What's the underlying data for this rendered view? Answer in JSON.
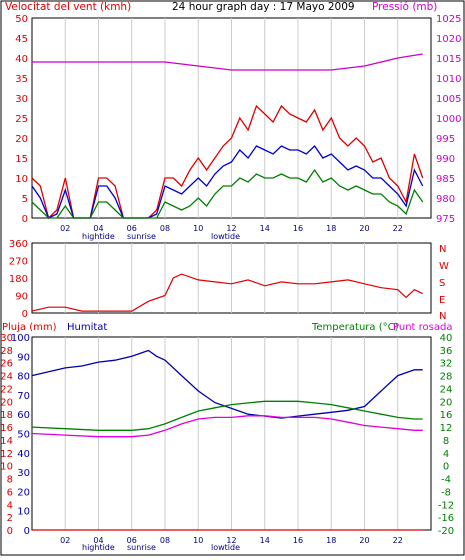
{
  "header": {
    "left_title": "Velocitat del vent (kmh)",
    "center_title": "24 hour graph day : 17 Mayo 2009",
    "right_title": "Pressió (mb)"
  },
  "markers": {
    "hightide": "hightide",
    "sunrise": "sunrise",
    "lowtide": "lowtide"
  },
  "wind_dir_labels": [
    "N",
    "W",
    "S",
    "E",
    "N"
  ],
  "bottom_header": {
    "rain": "Pluja (mm)",
    "humidity": "Humitat",
    "temperature": "Temperatura (°C)",
    "dewpoint": "Punt rosada"
  },
  "colors": {
    "wind_max": "#dd0000",
    "wind_avg": "#0000cc",
    "wind_min": "#008000",
    "pressure": "#cc00cc",
    "direction": "#dd0000",
    "humidity": "#0000aa",
    "temperature": "#008000",
    "dewpoint": "#dd00dd",
    "rain": "#dd0000",
    "grid": "#cccccc"
  },
  "chart_data": [
    {
      "type": "line",
      "title": "24 hour graph day : 17 Mayo 2009",
      "xlabel": "",
      "xticks": [
        "02",
        "04",
        "06",
        "08",
        "10",
        "12",
        "14",
        "16",
        "18",
        "20",
        "22"
      ],
      "xlim": [
        0,
        24
      ],
      "ylabel_left": "Velocitat del vent (kmh)",
      "ylim_left": [
        0,
        50
      ],
      "yticks_left": [
        0,
        5,
        10,
        15,
        20,
        25,
        30,
        35,
        40,
        45,
        50
      ],
      "ylabel_right": "Pressió (mb)",
      "ylim_right": [
        975,
        1025
      ],
      "yticks_right": [
        975,
        980,
        985,
        990,
        995,
        1000,
        1005,
        1010,
        1015,
        1020,
        1025
      ],
      "series": [
        {
          "name": "Velocitat del vent (kmh)",
          "axis": "left",
          "x": [
            0,
            0.5,
            1,
            1.5,
            2,
            2.5,
            3,
            3.5,
            4,
            4.5,
            5,
            5.5,
            6,
            6.5,
            7,
            7.5,
            8,
            8.5,
            9,
            9.5,
            10,
            10.5,
            11,
            11.5,
            12,
            12.5,
            13,
            13.5,
            14,
            14.5,
            15,
            15.5,
            16,
            16.5,
            17,
            17.5,
            18,
            18.5,
            19,
            19.5,
            20,
            20.5,
            21,
            21.5,
            22,
            22.5,
            23,
            23.5
          ],
          "values": [
            10,
            8,
            0,
            2,
            10,
            0,
            0,
            0,
            10,
            10,
            8,
            0,
            0,
            0,
            0,
            2,
            10,
            10,
            8,
            12,
            15,
            12,
            15,
            18,
            20,
            25,
            22,
            28,
            26,
            24,
            28,
            26,
            25,
            24,
            27,
            22,
            25,
            20,
            18,
            20,
            18,
            14,
            15,
            10,
            8,
            4,
            16,
            10
          ]
        },
        {
          "name": "",
          "axis": "left",
          "x": [
            0,
            0.5,
            1,
            1.5,
            2,
            2.5,
            3,
            3.5,
            4,
            4.5,
            5,
            5.5,
            6,
            6.5,
            7,
            7.5,
            8,
            8.5,
            9,
            9.5,
            10,
            10.5,
            11,
            11.5,
            12,
            12.5,
            13,
            13.5,
            14,
            14.5,
            15,
            15.5,
            16,
            16.5,
            17,
            17.5,
            18,
            18.5,
            19,
            19.5,
            20,
            20.5,
            21,
            21.5,
            22,
            22.5,
            23,
            23.5
          ],
          "values": [
            8,
            5,
            0,
            1,
            7,
            0,
            0,
            0,
            8,
            8,
            5,
            0,
            0,
            0,
            0,
            1,
            8,
            7,
            6,
            8,
            10,
            8,
            11,
            13,
            14,
            17,
            15,
            18,
            17,
            16,
            18,
            17,
            17,
            16,
            18,
            15,
            16,
            14,
            12,
            13,
            12,
            10,
            10,
            8,
            6,
            3,
            12,
            8
          ]
        },
        {
          "name": "",
          "axis": "left",
          "x": [
            0,
            0.5,
            1,
            1.5,
            2,
            2.5,
            3,
            3.5,
            4,
            4.5,
            5,
            5.5,
            6,
            6.5,
            7,
            7.5,
            8,
            8.5,
            9,
            9.5,
            10,
            10.5,
            11,
            11.5,
            12,
            12.5,
            13,
            13.5,
            14,
            14.5,
            15,
            15.5,
            16,
            16.5,
            17,
            17.5,
            18,
            18.5,
            19,
            19.5,
            20,
            20.5,
            21,
            21.5,
            22,
            22.5,
            23,
            23.5
          ],
          "values": [
            4,
            2,
            0,
            0,
            3,
            0,
            0,
            0,
            4,
            4,
            2,
            0,
            0,
            0,
            0,
            0,
            4,
            3,
            2,
            3,
            5,
            3,
            6,
            8,
            8,
            10,
            9,
            11,
            10,
            10,
            11,
            10,
            10,
            9,
            12,
            9,
            10,
            8,
            7,
            8,
            7,
            6,
            6,
            4,
            3,
            1,
            7,
            4
          ]
        },
        {
          "name": "Pressió (mb)",
          "axis": "right",
          "x": [
            0,
            2,
            4,
            6,
            8,
            10,
            12,
            14,
            16,
            18,
            20,
            22,
            23.5
          ],
          "values": [
            1014,
            1014,
            1014,
            1014,
            1014,
            1013,
            1012,
            1012,
            1012,
            1012,
            1013,
            1015,
            1016
          ]
        }
      ]
    },
    {
      "type": "line",
      "ylim": [
        0,
        360
      ],
      "yticks": [
        0,
        90,
        180,
        270,
        360
      ],
      "xlim": [
        0,
        24
      ],
      "series": [
        {
          "name": "",
          "x": [
            0,
            1,
            2,
            3,
            4,
            5,
            6,
            7,
            8,
            8.5,
            9,
            10,
            11,
            12,
            13,
            14,
            15,
            16,
            17,
            18,
            19,
            20,
            21,
            22,
            22.5,
            23,
            23.5
          ],
          "values": [
            10,
            30,
            30,
            10,
            10,
            10,
            10,
            60,
            90,
            180,
            200,
            170,
            160,
            150,
            170,
            140,
            160,
            150,
            150,
            160,
            170,
            150,
            130,
            120,
            80,
            120,
            100
          ]
        }
      ]
    },
    {
      "type": "line",
      "xticks": [
        "02",
        "04",
        "06",
        "08",
        "10",
        "12",
        "14",
        "16",
        "18",
        "20",
        "22"
      ],
      "xlim": [
        0,
        24
      ],
      "ylabel_rain": "Pluja (mm)",
      "ylim_rain": [
        0,
        30
      ],
      "yticks_rain": [
        0,
        2,
        4,
        6,
        8,
        10,
        12,
        14,
        16,
        18,
        20,
        22,
        24,
        26,
        28,
        30
      ],
      "ylabel_humidity": "Humitat",
      "ylim_humidity": [
        0,
        100
      ],
      "yticks_humidity": [
        0,
        10,
        20,
        30,
        40,
        50,
        60,
        70,
        80,
        90,
        100
      ],
      "ylabel_right": "Temperatura (°C)",
      "ylim_right": [
        -20,
        40
      ],
      "yticks_right": [
        -20,
        -16,
        -12,
        -8,
        -4,
        0,
        4,
        8,
        12,
        16,
        20,
        24,
        28,
        32,
        36,
        40
      ],
      "series": [
        {
          "name": "Humitat",
          "axis": "humidity",
          "x": [
            0,
            1,
            2,
            3,
            4,
            5,
            6,
            7,
            7.5,
            8,
            9,
            10,
            11,
            12,
            13,
            14,
            15,
            16,
            17,
            18,
            19,
            20,
            21,
            22,
            23,
            23.5
          ],
          "values": [
            80,
            82,
            84,
            85,
            87,
            88,
            90,
            93,
            90,
            88,
            80,
            72,
            66,
            63,
            60,
            59,
            58,
            59,
            60,
            61,
            62,
            64,
            72,
            80,
            83,
            83
          ]
        },
        {
          "name": "Temperatura (°C)",
          "axis": "right",
          "x": [
            0,
            2,
            4,
            6,
            7,
            8,
            9,
            10,
            11,
            12,
            13,
            14,
            15,
            16,
            17,
            18,
            19,
            20,
            21,
            22,
            23,
            23.5
          ],
          "values": [
            12,
            11.5,
            11,
            11,
            11.5,
            13,
            15,
            17,
            18,
            19,
            19.5,
            20,
            20,
            20,
            19.5,
            19,
            18,
            17,
            16,
            15,
            14.5,
            14.5
          ]
        },
        {
          "name": "Punt rosada",
          "axis": "right",
          "x": [
            0,
            2,
            4,
            6,
            7,
            8,
            9,
            10,
            11,
            12,
            13,
            14,
            15,
            16,
            17,
            18,
            19,
            20,
            21,
            22,
            23,
            23.5
          ],
          "values": [
            10,
            9.5,
            9,
            9,
            9.5,
            11,
            13,
            14.5,
            15,
            15,
            15.5,
            15.5,
            15,
            15,
            15,
            14.5,
            13.5,
            12.5,
            12,
            11.5,
            11,
            11
          ]
        },
        {
          "name": "Pluja (mm)",
          "axis": "rain",
          "x": [
            0,
            23.5
          ],
          "values": [
            0,
            0
          ]
        }
      ]
    }
  ]
}
